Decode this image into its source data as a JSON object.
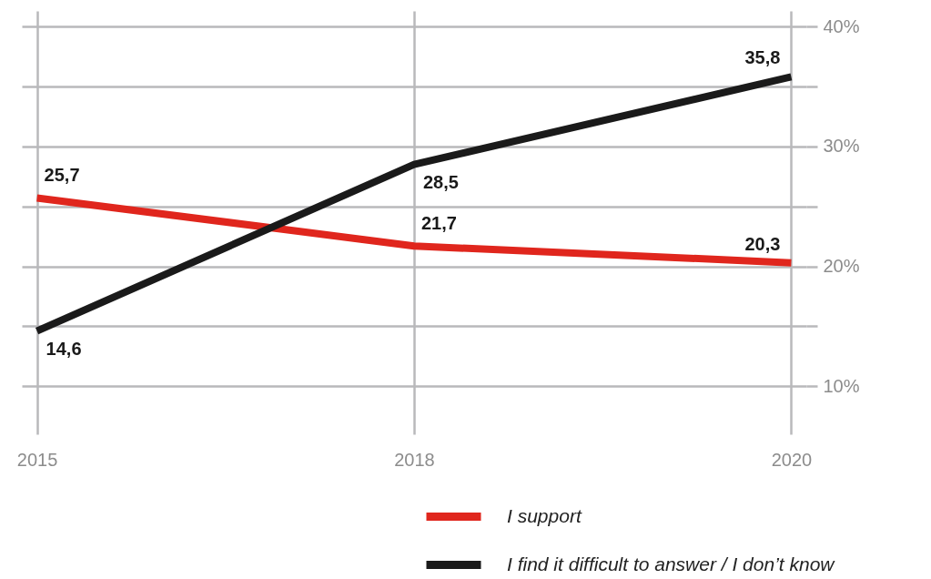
{
  "chart_data": {
    "type": "line",
    "categories": [
      "2015",
      "2018",
      "2020"
    ],
    "series": [
      {
        "name": "I support",
        "color": "#e0261d",
        "values": [
          25.7,
          21.7,
          20.3
        ],
        "value_labels": [
          "25,7",
          "21,7",
          "20,3"
        ]
      },
      {
        "name": "I find it difficult to answer / I don’t know",
        "color": "#1a1a1a",
        "values": [
          14.6,
          28.5,
          35.8
        ],
        "value_labels": [
          "14,6",
          "28,5",
          "35,8"
        ]
      }
    ],
    "ylim": [
      6,
      41.3
    ],
    "yticks": [
      {
        "value": 10,
        "label": "10%"
      },
      {
        "value": 15,
        "label": null
      },
      {
        "value": 20,
        "label": "20%"
      },
      {
        "value": 25,
        "label": null
      },
      {
        "value": 30,
        "label": "30%"
      },
      {
        "value": 35,
        "label": null
      },
      {
        "value": 40,
        "label": "40%"
      }
    ],
    "grid": true,
    "legend": "bottom",
    "marker": "none",
    "line_style": "solid"
  }
}
